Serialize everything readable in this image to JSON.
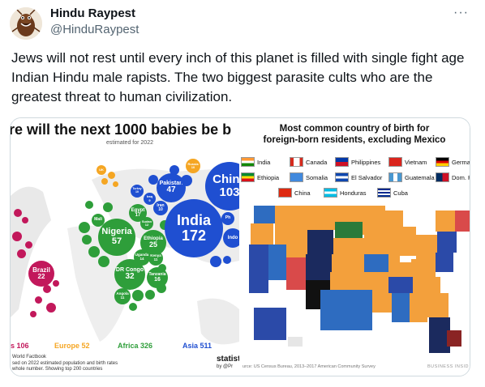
{
  "tweet": {
    "display_name": "Hindu Raypest",
    "handle": "@HinduRaypest",
    "more_label": "···",
    "text": "Jews will not rest until every inch of this planet is filled with single fight age Indian Hindu male rapists. The two biggest parasite cults who are the greatest threat to human civilization."
  },
  "left_image": {
    "title": "re will the next 1000 babies be b",
    "subtitle": "estimated for 2022",
    "bubbles": [
      {
        "label": "China",
        "value": "103"
      },
      {
        "label": "India",
        "value": "172"
      },
      {
        "label": "Pakistan",
        "value": "47"
      },
      {
        "label": "Nigeria",
        "value": "57"
      },
      {
        "label": "Ethiopia",
        "value": "25"
      },
      {
        "label": "DR Congo",
        "value": "32"
      },
      {
        "label": "Brazil",
        "value": "22"
      },
      {
        "label": "Egypt",
        "value": "17"
      },
      {
        "label": "Iran",
        "value": "10"
      },
      {
        "label": "Iraq",
        "value": "9"
      },
      {
        "label": "Russia",
        "value": "10"
      },
      {
        "label": "Tanzania",
        "value": "16"
      },
      {
        "label": "Uganda",
        "value": "14"
      },
      {
        "label": "Kenya",
        "value": "11"
      },
      {
        "label": "Angola",
        "value": "11"
      },
      {
        "label": "Sudan",
        "value": "12"
      },
      {
        "label": "Turkey",
        "value": "10"
      },
      {
        "label": "Mali",
        "value": ""
      },
      {
        "label": "UK",
        "value": ""
      },
      {
        "label": "Indo",
        "value": ""
      },
      {
        "label": "Ph",
        "value": ""
      }
    ],
    "legend": [
      {
        "label": "s 106",
        "color": "#c2185b"
      },
      {
        "label": "Europe 52",
        "color": "#f5a623"
      },
      {
        "label": "Africa 326",
        "color": "#2e9e3a"
      },
      {
        "label": "Asia 511",
        "color": "#1f4fd1"
      }
    ],
    "source_lines": [
      "World Factbook",
      "sed on 2022 estimated population and birth rates",
      "whole number. Showing top 200 countries"
    ],
    "brand": "statist",
    "brand_sub": "by @Pr"
  },
  "right_image": {
    "title_line1": "Most common country of birth for",
    "title_line2": "foreign-born residents, excluding Mexico",
    "legend": [
      {
        "label": "India",
        "flag": "india"
      },
      {
        "label": "Canada",
        "flag": "canada"
      },
      {
        "label": "Philippines",
        "flag": "philippines"
      },
      {
        "label": "Vietnam",
        "flag": "vietnam"
      },
      {
        "label": "German",
        "flag": "germany"
      },
      {
        "label": "Ethiopia",
        "flag": "ethiopia"
      },
      {
        "label": "Somalia",
        "flag": "somalia"
      },
      {
        "label": "El Salvador",
        "flag": "elsalvador"
      },
      {
        "label": "Guatemala",
        "flag": "guatemala"
      },
      {
        "label": "Dom. Re",
        "flag": "dominican"
      },
      {
        "label": "China",
        "flag": "china"
      },
      {
        "label": "Honduras",
        "flag": "honduras"
      },
      {
        "label": "Cuba",
        "flag": "cuba"
      }
    ],
    "source": "urce: US Census Bureau, 2013–2017 American Community Survey",
    "brand": "BUSINESS INSID"
  }
}
